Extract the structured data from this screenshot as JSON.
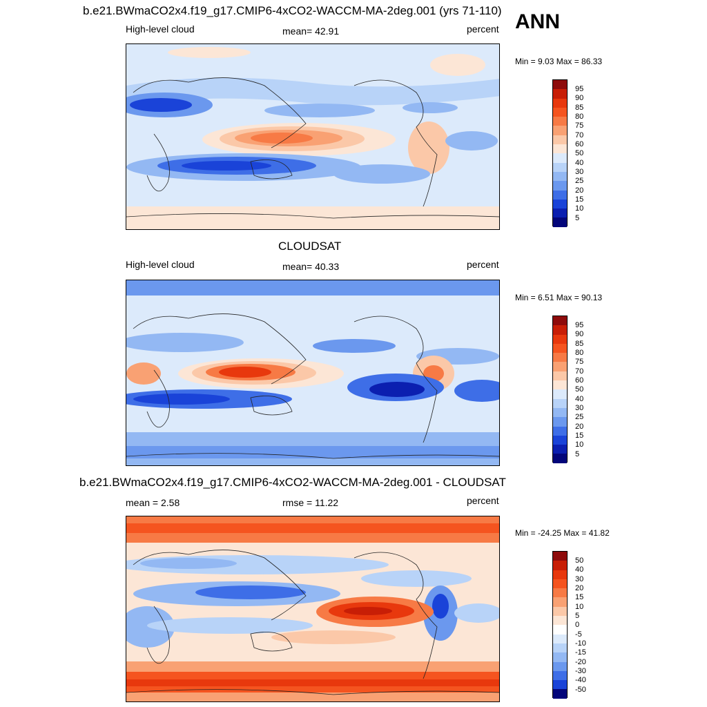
{
  "season": "ANN",
  "panels": [
    {
      "title": "b.e21.BWmaCO2x4.f19_g17.CMIP6-4xCO2-WACCM-MA-2deg.001 (yrs 71-110)",
      "left": "High-level cloud",
      "center": "mean=  42.91",
      "right": "percent",
      "minmax": "Min =   9.03 Max =  86.33",
      "levels": [
        "95",
        "90",
        "85",
        "80",
        "75",
        "70",
        "60",
        "50",
        "40",
        "30",
        "25",
        "20",
        "15",
        "10",
        "5"
      ],
      "colors": [
        "#8e0b0b",
        "#c81e06",
        "#e8380d",
        "#f5541f",
        "#f77a45",
        "#f9a173",
        "#fbc8a8",
        "#fce6d6",
        "#dceafb",
        "#b8d3f8",
        "#93b8f3",
        "#6b98ee",
        "#3e6ee7",
        "#1a43d8",
        "#0b1fb0",
        "#03067a"
      ]
    },
    {
      "title": "CLOUDSAT",
      "left": "High-level cloud",
      "center": "mean=  40.33",
      "right": "percent",
      "minmax": "Min =   6.51 Max =  90.13",
      "levels": [
        "95",
        "90",
        "85",
        "80",
        "75",
        "70",
        "60",
        "50",
        "40",
        "30",
        "25",
        "20",
        "15",
        "10",
        "5"
      ],
      "colors": [
        "#8e0b0b",
        "#c81e06",
        "#e8380d",
        "#f5541f",
        "#f77a45",
        "#f9a173",
        "#fbc8a8",
        "#fce6d6",
        "#dceafb",
        "#b8d3f8",
        "#93b8f3",
        "#6b98ee",
        "#3e6ee7",
        "#1a43d8",
        "#0b1fb0",
        "#03067a"
      ]
    },
    {
      "title": "b.e21.BWmaCO2x4.f19_g17.CMIP6-4xCO2-WACCM-MA-2deg.001 - CLOUDSAT",
      "left": "mean =   2.58",
      "center": "rmse =  11.22",
      "right": "percent",
      "minmax": "Min = -24.25 Max =  41.82",
      "levels": [
        "50",
        "40",
        "30",
        "20",
        "15",
        "10",
        "5",
        "0",
        "-5",
        "-10",
        "-15",
        "-20",
        "-30",
        "-40",
        "-50"
      ],
      "colors": [
        "#8e0b0b",
        "#c81e06",
        "#e8380d",
        "#f5541f",
        "#f77a45",
        "#f9a173",
        "#fbc8a8",
        "#fce6d6",
        "#ffffff",
        "#dceafb",
        "#b8d3f8",
        "#93b8f3",
        "#6b98ee",
        "#3e6ee7",
        "#1a43d8",
        "#03067a"
      ]
    }
  ]
}
